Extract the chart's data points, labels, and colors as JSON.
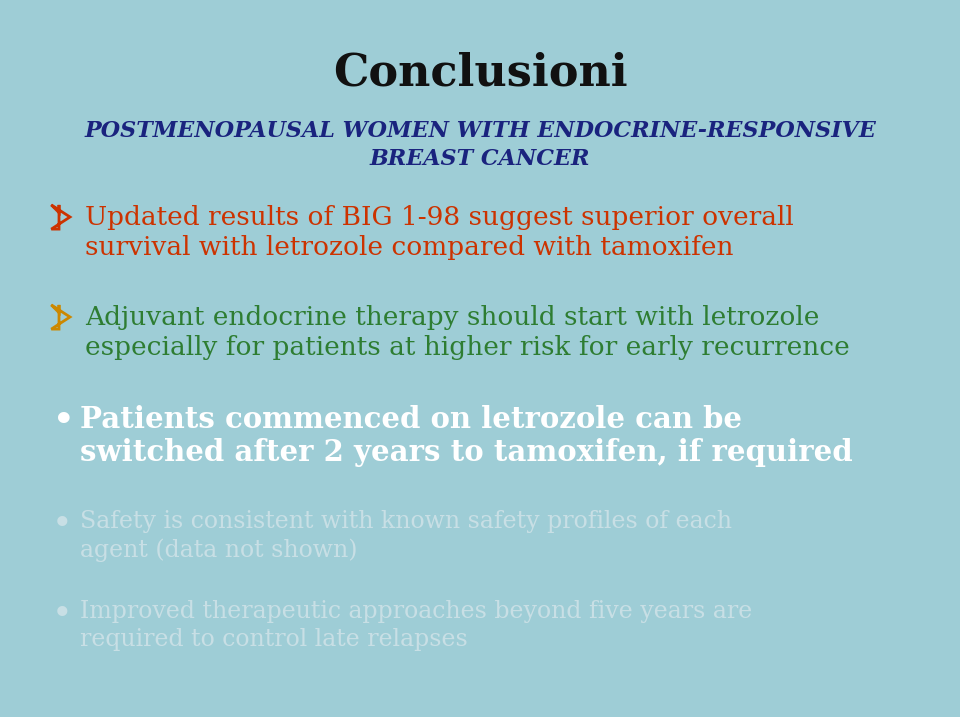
{
  "background_color": "#9ecdd6",
  "title": "Conclusioni",
  "title_color": "#111111",
  "title_fontsize": 32,
  "subtitle_line1": "POSTMENOPAUSAL WOMEN WITH ENDOCRINE-RESPONSIVE",
  "subtitle_line2": "BREAST CANCER",
  "subtitle_color": "#1a237e",
  "subtitle_fontsize": 16,
  "bullet1_text_line1": "Updated results of BIG 1-98 suggest superior overall",
  "bullet1_text_line2": "survival with letrozole compared with tamoxifen",
  "bullet1_color": "#cc3300",
  "bullet1_fontsize": 19,
  "bullet2_text_line1": "Adjuvant endocrine therapy should start with letrozole",
  "bullet2_text_line2": "especially for patients at higher risk for early recurrence",
  "bullet2_color": "#2e7d32",
  "bullet2_fontsize": 19,
  "bullet3_text_line1": "Patients commenced on letrozole can be",
  "bullet3_text_line2": "switched after 2 years to tamoxifen, if required",
  "bullet3_color": "#ffffff",
  "bullet3_fontsize": 21,
  "bullet4_text_line1": "Safety is consistent with known safety profiles of each",
  "bullet4_text_line2": "agent (data not shown)",
  "bullet4_color": "#c8dfe5",
  "bullet4_fontsize": 17,
  "bullet5_text_line1": "Improved therapeutic approaches beyond five years are",
  "bullet5_text_line2": "required to control late relapses",
  "bullet5_color": "#c8dfe5",
  "bullet5_fontsize": 17,
  "arrow1_color": "#cc3300",
  "arrow2_color": "#cc8800",
  "dot_color_3": "#ffffff",
  "dot_color_45": "#c8dfe5"
}
